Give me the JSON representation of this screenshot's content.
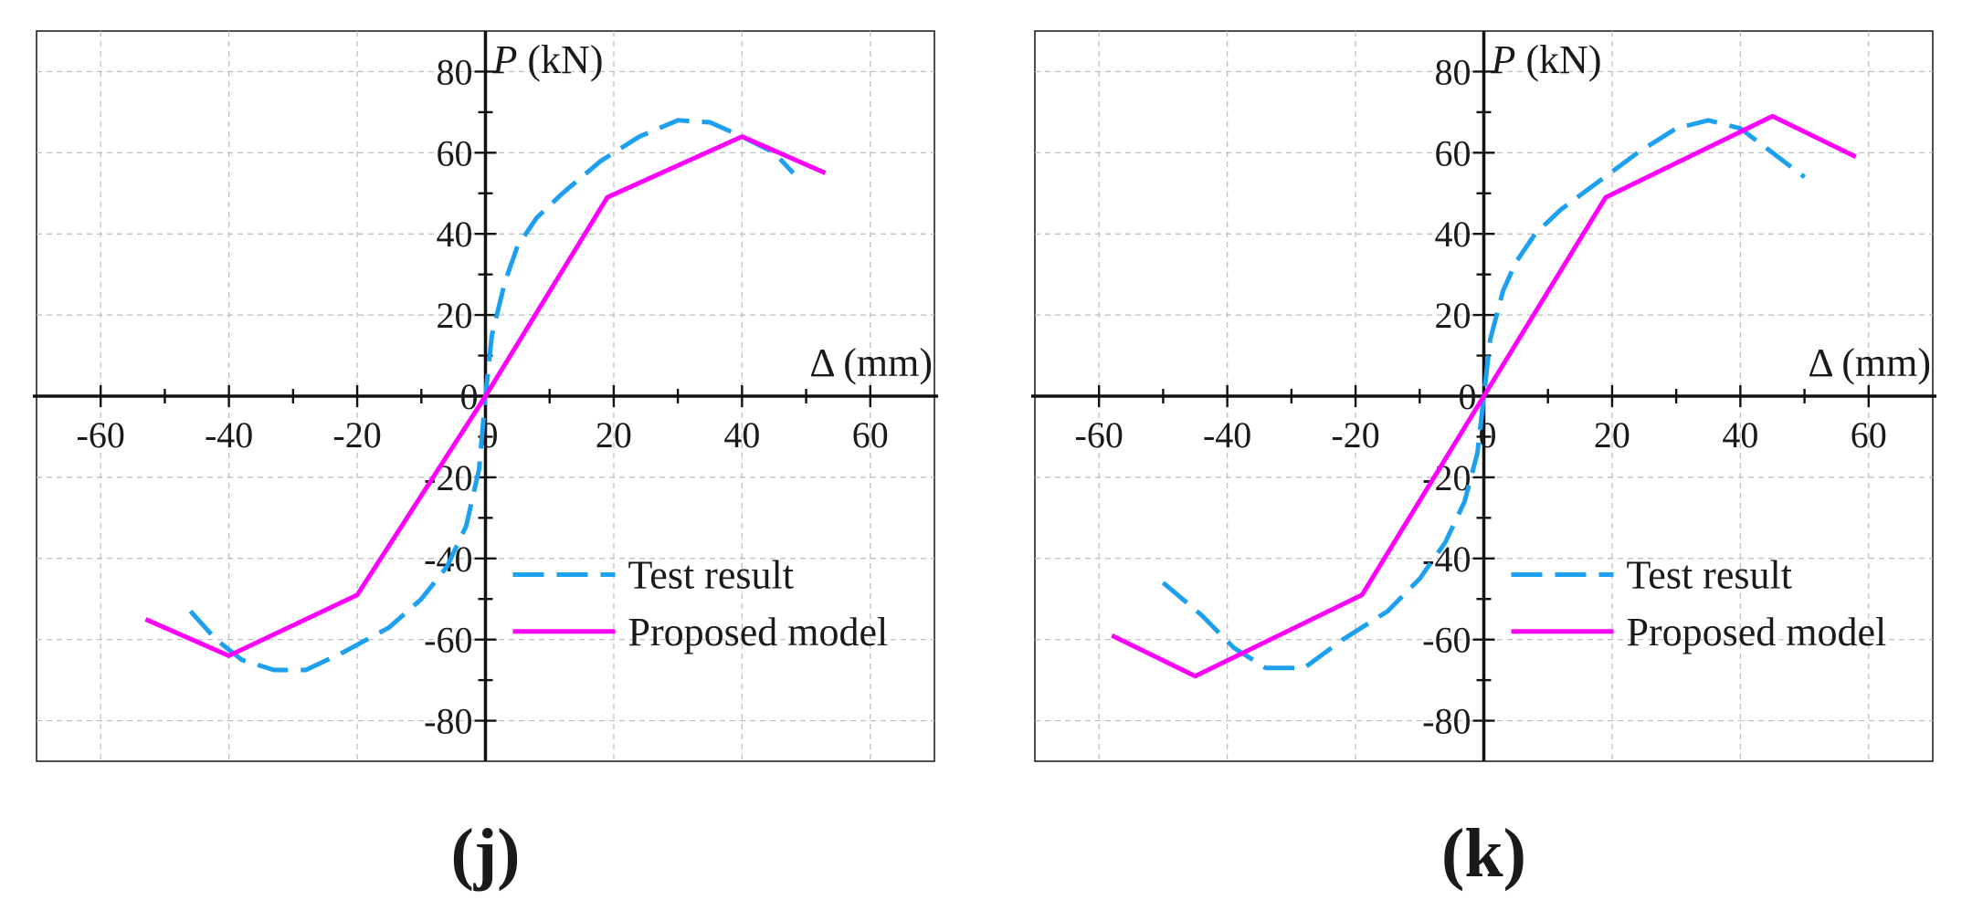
{
  "chart_data": [
    {
      "type": "line",
      "panel_label": "(j)",
      "title": "",
      "xlabel": "Δ (mm)",
      "ylabel_italic": "P",
      "ylabel_unit": " (kN)",
      "xlim": [
        -70,
        70
      ],
      "ylim": [
        -90,
        90
      ],
      "x_ticks": [
        -60,
        -40,
        -20,
        0,
        20,
        40,
        60
      ],
      "y_ticks": [
        -80,
        -60,
        -40,
        -20,
        0,
        20,
        40,
        60,
        80
      ],
      "x_tick_labels": [
        "-60",
        "-40",
        "-20",
        "0",
        "20",
        "40",
        "60"
      ],
      "y_tick_labels": [
        "-80",
        "-60",
        "-40",
        "-20",
        "0",
        "20",
        "40",
        "60",
        "80"
      ],
      "grid": true,
      "legend_position": "bottom-right",
      "series": [
        {
          "name": "Test result",
          "color": "#1ea0f0",
          "dash": true,
          "points": [
            [
              -46,
              -53
            ],
            [
              -42,
              -60
            ],
            [
              -38,
              -65
            ],
            [
              -33,
              -67.5
            ],
            [
              -28,
              -67.5
            ],
            [
              -22,
              -63
            ],
            [
              -15,
              -57
            ],
            [
              -10,
              -50
            ],
            [
              -6,
              -42
            ],
            [
              -3,
              -32
            ],
            [
              -1,
              -18
            ],
            [
              0,
              0
            ],
            [
              1,
              15
            ],
            [
              3,
              28
            ],
            [
              5,
              37
            ],
            [
              8,
              44
            ],
            [
              12,
              50
            ],
            [
              18,
              58
            ],
            [
              24,
              64
            ],
            [
              30,
              68
            ],
            [
              35,
              67.5
            ],
            [
              40,
              64
            ],
            [
              45,
              60
            ],
            [
              48,
              55
            ]
          ]
        },
        {
          "name": "Proposed model",
          "color": "#ff00ff",
          "dash": false,
          "points": [
            [
              -53,
              -55
            ],
            [
              -40,
              -64
            ],
            [
              -20,
              -49
            ],
            [
              0,
              0
            ],
            [
              19,
              49
            ],
            [
              40,
              64
            ],
            [
              53,
              55
            ]
          ]
        }
      ]
    },
    {
      "type": "line",
      "panel_label": "(k)",
      "title": "",
      "xlabel": "Δ (mm)",
      "ylabel_italic": "P",
      "ylabel_unit": " (kN)",
      "xlim": [
        -70,
        70
      ],
      "ylim": [
        -90,
        90
      ],
      "x_ticks": [
        -60,
        -40,
        -20,
        0,
        20,
        40,
        60
      ],
      "y_ticks": [
        -80,
        -60,
        -40,
        -20,
        0,
        20,
        40,
        60,
        80
      ],
      "x_tick_labels": [
        "-60",
        "-40",
        "-20",
        "0",
        "20",
        "40",
        "60"
      ],
      "y_tick_labels": [
        "-80",
        "-60",
        "-40",
        "-20",
        "0",
        "20",
        "40",
        "60",
        "80"
      ],
      "grid": true,
      "legend_position": "bottom-right",
      "series": [
        {
          "name": "Test result",
          "color": "#1ea0f0",
          "dash": true,
          "points": [
            [
              -50,
              -46
            ],
            [
              -44,
              -54
            ],
            [
              -39,
              -62
            ],
            [
              -34,
              -67
            ],
            [
              -28,
              -67
            ],
            [
              -22,
              -60
            ],
            [
              -15,
              -53
            ],
            [
              -10,
              -45
            ],
            [
              -6,
              -36
            ],
            [
              -3,
              -26
            ],
            [
              -1,
              -14
            ],
            [
              0,
              0
            ],
            [
              1,
              14
            ],
            [
              3,
              26
            ],
            [
              5,
              33
            ],
            [
              8,
              40
            ],
            [
              12,
              46
            ],
            [
              18,
              53
            ],
            [
              24,
              60
            ],
            [
              30,
              66
            ],
            [
              35,
              68
            ],
            [
              40,
              66
            ],
            [
              45,
              60
            ],
            [
              50,
              54
            ]
          ]
        },
        {
          "name": "Proposed model",
          "color": "#ff00ff",
          "dash": false,
          "points": [
            [
              -58,
              -59
            ],
            [
              -45,
              -69
            ],
            [
              -19,
              -49
            ],
            [
              0,
              0
            ],
            [
              19,
              49
            ],
            [
              45,
              69
            ],
            [
              58,
              59
            ]
          ]
        }
      ]
    }
  ]
}
